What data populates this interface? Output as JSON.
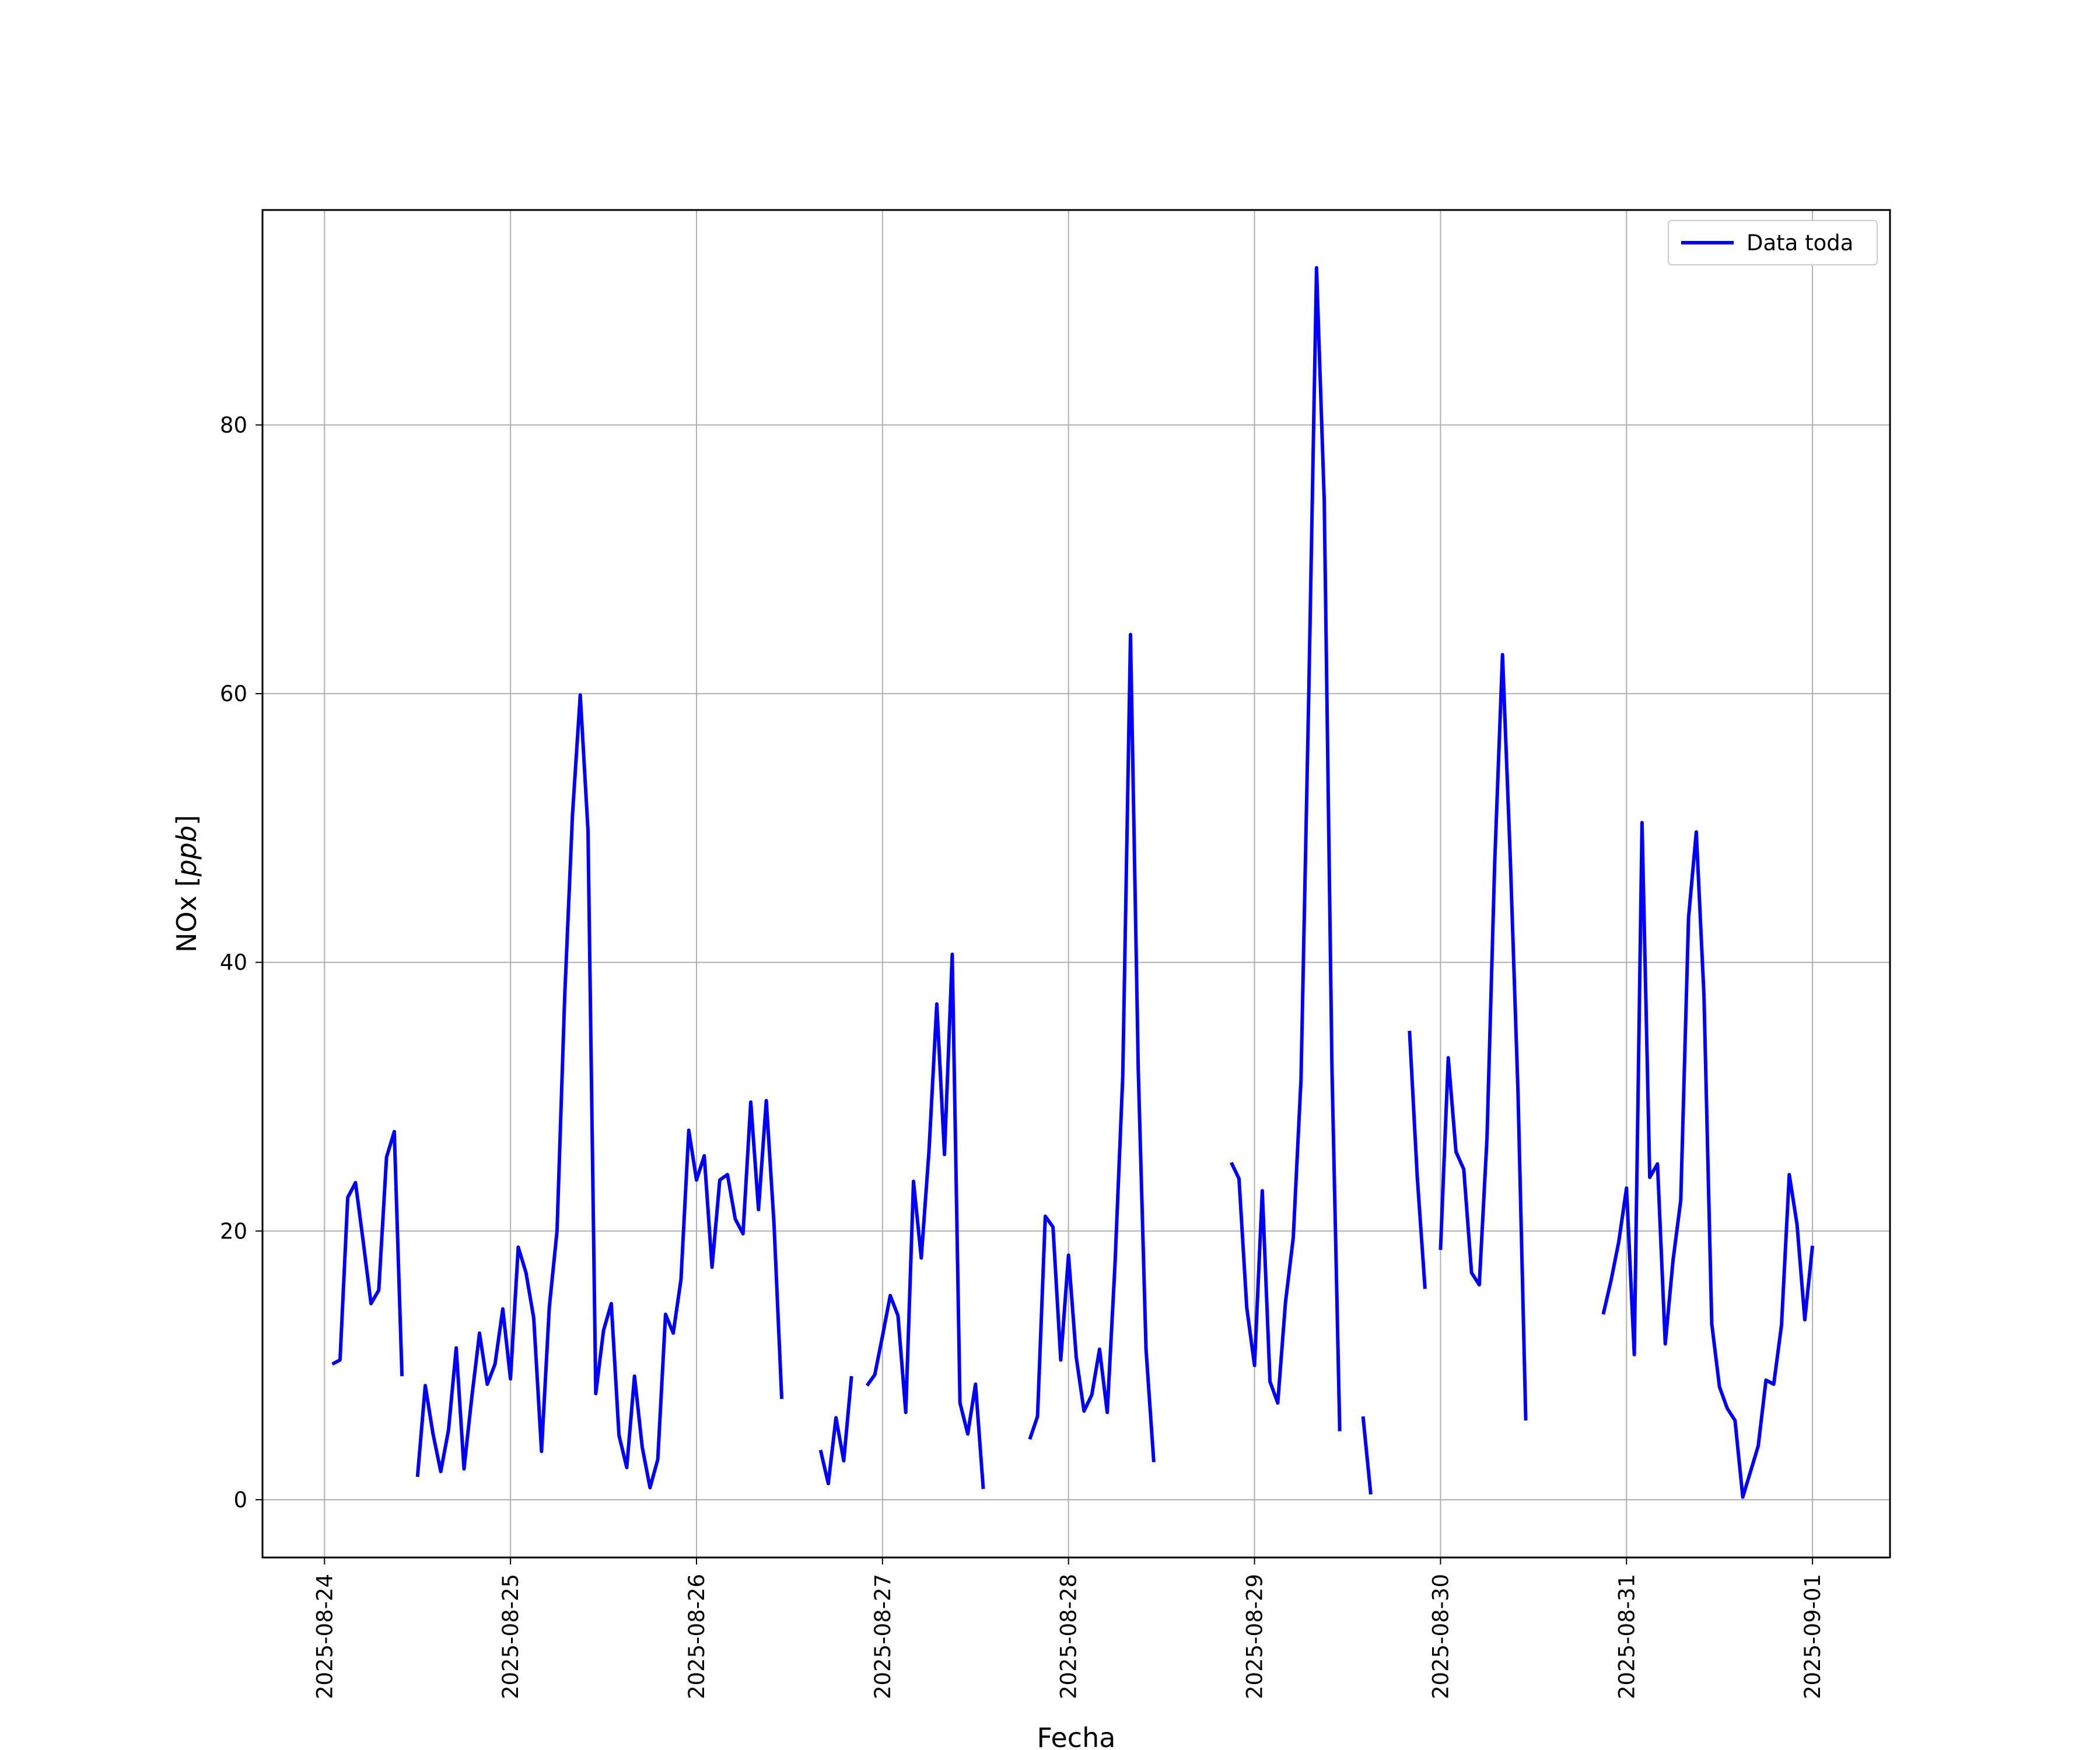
{
  "chart_data": {
    "type": "line",
    "xlabel": "Fecha",
    "ylabel": "NOx [ppb]",
    "ylabel_main": "NOx [",
    "ylabel_unit": "ppb",
    "ylabel_close": "]",
    "x_ticks": [
      "2025-08-24",
      "2025-08-25",
      "2025-08-26",
      "2025-08-27",
      "2025-08-28",
      "2025-08-29",
      "2025-08-30",
      "2025-08-31",
      "2025-09-01"
    ],
    "y_ticks": [
      0,
      20,
      40,
      60,
      80
    ],
    "xlim": [
      "2025-08-23T16:00",
      "2025-09-01T10:00"
    ],
    "ylim": [
      -4.3,
      96
    ],
    "grid": true,
    "legend_position": "top-right",
    "line_color": "#0000ff",
    "series": [
      {
        "name": "Data toda",
        "segments": [
          [
            [
              "2025-08-24T01:00",
              10.1
            ],
            [
              "2025-08-24T02:00",
              10.4
            ],
            [
              "2025-08-24T03:00",
              22.5
            ],
            [
              "2025-08-24T04:00",
              23.6
            ],
            [
              "2025-08-24T05:00",
              19.2
            ],
            [
              "2025-08-24T06:00",
              14.6
            ],
            [
              "2025-08-24T07:00",
              15.6
            ],
            [
              "2025-08-24T08:00",
              25.5
            ],
            [
              "2025-08-24T09:00",
              27.4
            ],
            [
              "2025-08-24T10:00",
              9.2
            ]
          ],
          [
            [
              "2025-08-24T12:00",
              1.7
            ],
            [
              "2025-08-24T13:00",
              8.5
            ],
            [
              "2025-08-24T14:00",
              4.9
            ],
            [
              "2025-08-24T15:00",
              2.1
            ],
            [
              "2025-08-24T16:00",
              5.2
            ],
            [
              "2025-08-24T17:00",
              11.3
            ],
            [
              "2025-08-24T18:00",
              2.3
            ],
            [
              "2025-08-24T19:00",
              7.6
            ],
            [
              "2025-08-24T20:00",
              12.4
            ],
            [
              "2025-08-24T21:00",
              8.6
            ],
            [
              "2025-08-24T22:00",
              10.1
            ],
            [
              "2025-08-24T23:00",
              14.2
            ],
            [
              "2025-08-25T00:00",
              9.0
            ],
            [
              "2025-08-25T01:00",
              18.8
            ],
            [
              "2025-08-25T02:00",
              16.9
            ],
            [
              "2025-08-25T03:00",
              13.5
            ],
            [
              "2025-08-25T04:00",
              3.6
            ],
            [
              "2025-08-25T05:00",
              14.3
            ],
            [
              "2025-08-25T06:00",
              20.0
            ],
            [
              "2025-08-25T07:00",
              37.5
            ],
            [
              "2025-08-25T08:00",
              51.0
            ],
            [
              "2025-08-25T09:00",
              59.9
            ],
            [
              "2025-08-25T10:00",
              49.8
            ],
            [
              "2025-08-25T11:00",
              7.9
            ],
            [
              "2025-08-25T12:00",
              12.6
            ],
            [
              "2025-08-25T13:00",
              14.6
            ],
            [
              "2025-08-25T14:00",
              4.8
            ],
            [
              "2025-08-25T15:00",
              2.4
            ],
            [
              "2025-08-25T16:00",
              9.2
            ],
            [
              "2025-08-25T17:00",
              3.9
            ],
            [
              "2025-08-25T18:00",
              0.9
            ],
            [
              "2025-08-25T19:00",
              3.0
            ],
            [
              "2025-08-25T20:00",
              13.8
            ],
            [
              "2025-08-25T21:00",
              12.4
            ],
            [
              "2025-08-25T22:00",
              16.4
            ],
            [
              "2025-08-25T23:00",
              27.5
            ],
            [
              "2025-08-26T00:00",
              23.8
            ],
            [
              "2025-08-26T01:00",
              25.6
            ],
            [
              "2025-08-26T02:00",
              17.3
            ],
            [
              "2025-08-26T03:00",
              23.8
            ],
            [
              "2025-08-26T04:00",
              24.2
            ],
            [
              "2025-08-26T05:00",
              20.9
            ],
            [
              "2025-08-26T06:00",
              19.8
            ],
            [
              "2025-08-26T07:00",
              29.6
            ],
            [
              "2025-08-26T08:00",
              21.6
            ],
            [
              "2025-08-26T09:00",
              29.7
            ],
            [
              "2025-08-26T10:00",
              20.5
            ],
            [
              "2025-08-26T11:00",
              7.5
            ]
          ],
          [
            [
              "2025-08-26T16:00",
              3.7
            ],
            [
              "2025-08-26T17:00",
              1.2
            ],
            [
              "2025-08-26T18:00",
              6.1
            ],
            [
              "2025-08-26T19:00",
              2.9
            ],
            [
              "2025-08-26T20:00",
              9.2
            ]
          ],
          [
            [
              "2025-08-26T22:00",
              8.5
            ],
            [
              "2025-08-26T23:00",
              9.3
            ],
            [
              "2025-08-27T00:00",
              12.2
            ],
            [
              "2025-08-27T01:00",
              15.2
            ],
            [
              "2025-08-27T02:00",
              13.7
            ],
            [
              "2025-08-27T03:00",
              6.5
            ],
            [
              "2025-08-27T04:00",
              23.7
            ],
            [
              "2025-08-27T05:00",
              18.0
            ],
            [
              "2025-08-27T06:00",
              26.0
            ],
            [
              "2025-08-27T07:00",
              36.9
            ],
            [
              "2025-08-27T08:00",
              25.7
            ],
            [
              "2025-08-27T09:00",
              40.6
            ],
            [
              "2025-08-27T10:00",
              7.2
            ],
            [
              "2025-08-27T11:00",
              4.9
            ],
            [
              "2025-08-27T12:00",
              8.6
            ],
            [
              "2025-08-27T13:00",
              0.8
            ]
          ],
          [
            [
              "2025-08-27T19:00",
              4.5
            ],
            [
              "2025-08-27T20:00",
              6.2
            ],
            [
              "2025-08-27T21:00",
              21.1
            ],
            [
              "2025-08-27T22:00",
              20.3
            ],
            [
              "2025-08-27T23:00",
              10.4
            ],
            [
              "2025-08-28T00:00",
              18.2
            ],
            [
              "2025-08-28T01:00",
              10.6
            ],
            [
              "2025-08-28T02:00",
              6.6
            ],
            [
              "2025-08-28T03:00",
              7.8
            ],
            [
              "2025-08-28T04:00",
              11.2
            ],
            [
              "2025-08-28T05:00",
              6.5
            ],
            [
              "2025-08-28T06:00",
              17.5
            ],
            [
              "2025-08-28T07:00",
              31.5
            ],
            [
              "2025-08-28T08:00",
              64.4
            ],
            [
              "2025-08-28T09:00",
              32.0
            ],
            [
              "2025-08-28T10:00",
              11.2
            ],
            [
              "2025-08-28T11:00",
              2.8
            ]
          ],
          [
            [
              "2025-08-28T21:00",
              25.1
            ],
            [
              "2025-08-28T22:00",
              23.9
            ],
            [
              "2025-08-28T23:00",
              14.3
            ],
            [
              "2025-08-29T00:00",
              10.0
            ],
            [
              "2025-08-29T01:00",
              23.0
            ],
            [
              "2025-08-29T02:00",
              8.8
            ],
            [
              "2025-08-29T03:00",
              7.2
            ],
            [
              "2025-08-29T04:00",
              14.7
            ],
            [
              "2025-08-29T05:00",
              19.5
            ],
            [
              "2025-08-29T06:00",
              31.3
            ],
            [
              "2025-08-29T07:00",
              60.0
            ],
            [
              "2025-08-29T08:00",
              91.7
            ],
            [
              "2025-08-29T09:00",
              74.4
            ],
            [
              "2025-08-29T10:00",
              32.0
            ],
            [
              "2025-08-29T11:00",
              5.1
            ]
          ],
          [
            [
              "2025-08-29T14:00",
              6.2
            ],
            [
              "2025-08-29T15:00",
              0.4
            ]
          ],
          [
            [
              "2025-08-29T20:00",
              34.9
            ],
            [
              "2025-08-29T21:00",
              24.0
            ],
            [
              "2025-08-29T22:00",
              15.7
            ]
          ],
          [
            [
              "2025-08-30T00:00",
              18.6
            ],
            [
              "2025-08-30T01:00",
              32.9
            ],
            [
              "2025-08-30T02:00",
              25.9
            ],
            [
              "2025-08-30T03:00",
              24.6
            ],
            [
              "2025-08-30T04:00",
              16.9
            ],
            [
              "2025-08-30T05:00",
              16.0
            ],
            [
              "2025-08-30T06:00",
              26.9
            ],
            [
              "2025-08-30T07:00",
              47.5
            ],
            [
              "2025-08-30T08:00",
              62.9
            ],
            [
              "2025-08-30T09:00",
              47.8
            ],
            [
              "2025-08-30T10:00",
              30.3
            ],
            [
              "2025-08-30T11:00",
              5.9
            ]
          ],
          [
            [
              "2025-08-30T21:00",
              13.8
            ],
            [
              "2025-08-30T22:00",
              16.3
            ],
            [
              "2025-08-30T23:00",
              19.2
            ],
            [
              "2025-08-31T00:00",
              23.2
            ],
            [
              "2025-08-31T01:00",
              10.8
            ],
            [
              "2025-08-31T02:00",
              50.4
            ],
            [
              "2025-08-31T03:00",
              24.0
            ],
            [
              "2025-08-31T04:00",
              25.0
            ],
            [
              "2025-08-31T05:00",
              11.6
            ],
            [
              "2025-08-31T06:00",
              17.8
            ],
            [
              "2025-08-31T07:00",
              22.3
            ],
            [
              "2025-08-31T08:00",
              43.3
            ],
            [
              "2025-08-31T09:00",
              49.7
            ],
            [
              "2025-08-31T10:00",
              37.5
            ],
            [
              "2025-08-31T11:00",
              13.1
            ],
            [
              "2025-08-31T12:00",
              8.4
            ],
            [
              "2025-08-31T13:00",
              6.8
            ],
            [
              "2025-08-31T14:00",
              5.9
            ],
            [
              "2025-08-31T15:00",
              0.2
            ],
            [
              "2025-08-31T16:00",
              2.1
            ],
            [
              "2025-08-31T17:00",
              4.0
            ],
            [
              "2025-08-31T18:00",
              8.9
            ],
            [
              "2025-08-31T19:00",
              8.6
            ],
            [
              "2025-08-31T20:00",
              13.0
            ],
            [
              "2025-08-31T21:00",
              24.2
            ],
            [
              "2025-08-31T22:00",
              20.5
            ],
            [
              "2025-08-31T23:00",
              13.4
            ],
            [
              "2025-09-01T00:00",
              18.9
            ]
          ]
        ]
      }
    ]
  }
}
